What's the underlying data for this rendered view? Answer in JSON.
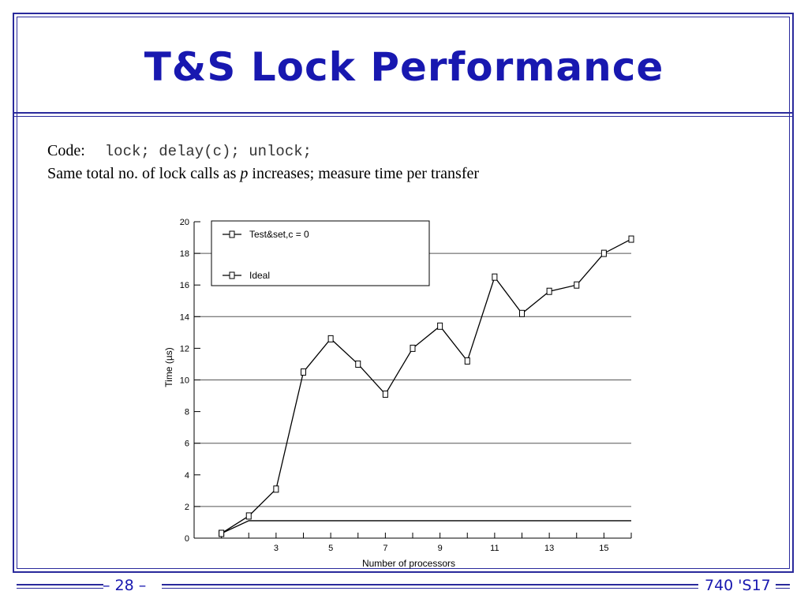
{
  "slide": {
    "title": "T&S Lock Performance",
    "code_label": "Code:",
    "code_text": "lock; delay(c); unlock;",
    "desc_prefix": "Same total no. of lock calls as ",
    "desc_var": "p",
    "desc_suffix": " increases; measure time per transfer",
    "page_number": "– 28 –",
    "course": "740 'S17"
  },
  "colors": {
    "accent": "#1818b0",
    "frame": "#2a2a9c",
    "grid": "#000000"
  },
  "chart_data": {
    "type": "line",
    "title": "",
    "xlabel": "Number of processors",
    "ylabel": "Time (µs)",
    "xlim": [
      0,
      16
    ],
    "ylim": [
      0,
      20
    ],
    "xticks": [
      1,
      2,
      3,
      4,
      5,
      6,
      7,
      8,
      9,
      10,
      11,
      12,
      13,
      14,
      15,
      16
    ],
    "xtick_labels": [
      "3",
      "5",
      "7",
      "9",
      "11",
      "13",
      "15"
    ],
    "xtick_label_values": [
      3,
      5,
      7,
      9,
      11,
      13,
      15
    ],
    "yticks": [
      0,
      2,
      4,
      6,
      8,
      10,
      12,
      14,
      16,
      18,
      20
    ],
    "ytick_labels": [
      "0",
      "2",
      "4",
      "6",
      "8",
      "10",
      "12",
      "14",
      "16",
      "18",
      "20"
    ],
    "grid": true,
    "legend": {
      "placement": "top-left"
    },
    "series": [
      {
        "name": "Test&set,c = 0",
        "marker": "square",
        "x": [
          1,
          2,
          3,
          4,
          5,
          6,
          7,
          8,
          9,
          10,
          11,
          12,
          13,
          14,
          15,
          16
        ],
        "y": [
          0.3,
          1.4,
          3.1,
          10.5,
          12.6,
          11.0,
          9.1,
          12.0,
          13.4,
          11.2,
          16.5,
          14.2,
          15.6,
          16.0,
          18.0,
          18.9
        ]
      },
      {
        "name": "Ideal",
        "marker": "square",
        "x": [
          1,
          2,
          3,
          4,
          5,
          6,
          7,
          8,
          9,
          10,
          11,
          12,
          13,
          14,
          15,
          16
        ],
        "y": [
          0.3,
          1.1,
          1.1,
          1.1,
          1.1,
          1.1,
          1.1,
          1.1,
          1.1,
          1.1,
          1.1,
          1.1,
          1.1,
          1.1,
          1.1,
          1.1
        ]
      }
    ]
  }
}
